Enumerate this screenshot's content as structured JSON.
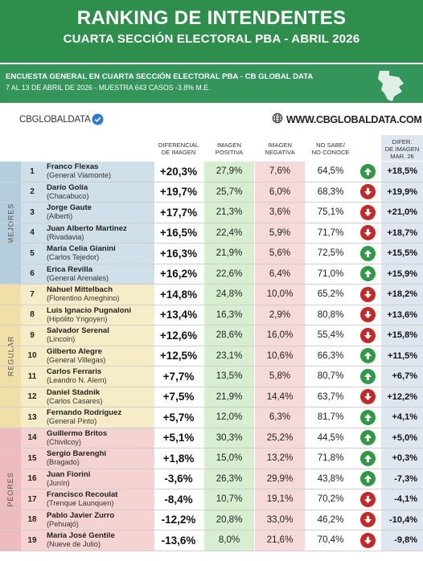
{
  "header": {
    "title": "RANKING DE INTENDENTES",
    "subtitle": "CUARTA SECCIÓN ELECTORAL PBA - ABRIL 2026"
  },
  "info": {
    "line1": "ENCUESTA GENERAL EN CUARTA SECCIÓN ELECTORAL PBA - CB GLOBAL DATA",
    "line2": "7 AL 13 DE ABRIL  DE 2026 - MUESTRA 643  CASOS -3.8% M.E."
  },
  "brand": {
    "left": "CBGLOBALDATA",
    "right": "WWW.CBGLOBALDATA.COM"
  },
  "columns": {
    "diff": [
      "DIFERENCIAL",
      "DE IMAGEN"
    ],
    "pos": [
      "IMAGEN",
      "POSITIVA"
    ],
    "neg": [
      "IMAGEN",
      "NEGATIVA"
    ],
    "ns": [
      "NO SABE/",
      "NO CONOCE"
    ],
    "var": [
      "DIFER.",
      "DE IMAGEN",
      "MAR. 26"
    ]
  },
  "groups": [
    {
      "label": "MEJORES",
      "from": 0,
      "to": 5,
      "color": "#cfe0ea",
      "band": "#b5cede"
    },
    {
      "label": "REGULAR",
      "from": 6,
      "to": 12,
      "color": "#f7ecc8",
      "band": "#f0dfa6"
    },
    {
      "label": "PEORES",
      "from": 13,
      "to": 18,
      "color": "#f5d3d3",
      "band": "#eebcbc"
    }
  ],
  "colors": {
    "up": "#2f9a44",
    "down": "#c62828"
  },
  "rows": [
    {
      "rank": "1",
      "name": "Franco Flexas",
      "town": "(General Viamonte)",
      "diff": "+20,3%",
      "pos": "27,9%",
      "neg": "7,6%",
      "ns": "64,5%",
      "trend": "up",
      "var": "+18,5%"
    },
    {
      "rank": "2",
      "name": "Darío Golía",
      "town": "(Chacabuco)",
      "diff": "+19,7%",
      "pos": "25,7%",
      "neg": "6,0%",
      "ns": "68,3%",
      "trend": "down",
      "var": "+19,9%"
    },
    {
      "rank": "3",
      "name": "Jorge Gaute",
      "town": "(Alberti)",
      "diff": "+17,7%",
      "pos": "21,3%",
      "neg": "3,6%",
      "ns": "75,1%",
      "trend": "down",
      "var": "+21,0%"
    },
    {
      "rank": "4",
      "name": "Juan Alberto Martinez",
      "town": "(Rivadavia)",
      "diff": "+16,5%",
      "pos": "22,4%",
      "neg": "5,9%",
      "ns": "71,7%",
      "trend": "down",
      "var": "+18,7%"
    },
    {
      "rank": "5",
      "name": "María Celia Gianini",
      "town": "(Carlos Tejedor)",
      "diff": "+16,3%",
      "pos": "21,9%",
      "neg": "5,6%",
      "ns": "72,5%",
      "trend": "up",
      "var": "+15,5%"
    },
    {
      "rank": "6",
      "name": "Erica Revilla",
      "town": "(General Arenales)",
      "diff": "+16,2%",
      "pos": "22,6%",
      "neg": "6,4%",
      "ns": "71,0%",
      "trend": "up",
      "var": "+15,9%"
    },
    {
      "rank": "7",
      "name": "Nahuel Mittelbach",
      "town": "(Florentino Ameghino)",
      "diff": "+14,8%",
      "pos": "24,8%",
      "neg": "10,0%",
      "ns": "65,2%",
      "trend": "down",
      "var": "+18,2%"
    },
    {
      "rank": "8",
      "name": "Luis Ignacio Pugnaloni",
      "town": "(Hipólito Yrigoyen)",
      "diff": "+13,4%",
      "pos": "16,3%",
      "neg": "2,9%",
      "ns": "80,8%",
      "trend": "down",
      "var": "+13,6%"
    },
    {
      "rank": "9",
      "name": "Salvador Serenal",
      "town": "(Lincoln)",
      "diff": "+12,6%",
      "pos": "28,6%",
      "neg": "16,0%",
      "ns": "55,4%",
      "trend": "down",
      "var": "+15,8%"
    },
    {
      "rank": "10",
      "name": "Gilberto Alegre",
      "town": "(General Villegas)",
      "diff": "+12,5%",
      "pos": "23,1%",
      "neg": "10,6%",
      "ns": "66,3%",
      "trend": "up",
      "var": "+11,5%"
    },
    {
      "rank": "11",
      "name": "Carlos Ferraris",
      "town": "(Leandro N. Alem)",
      "diff": "+7,7%",
      "pos": "13,5%",
      "neg": "5,8%",
      "ns": "80,7%",
      "trend": "up",
      "var": "+6,7%"
    },
    {
      "rank": "12",
      "name": "Daniel Stadnik",
      "town": "(Carlos Casares)",
      "diff": "+7,5%",
      "pos": "21,9%",
      "neg": "14,4%",
      "ns": "63,7%",
      "trend": "down",
      "var": "+12,2%"
    },
    {
      "rank": "13",
      "name": "Fernando Rodríguez",
      "town": "(General Pinto)",
      "diff": "+5,7%",
      "pos": "12,0%",
      "neg": "6,3%",
      "ns": "81,7%",
      "trend": "up",
      "var": "+4,1%"
    },
    {
      "rank": "14",
      "name": "Guillermo Britos",
      "town": "(Chivilcoy)",
      "diff": "+5,1%",
      "pos": "30,3%",
      "neg": "25,2%",
      "ns": "44,5%",
      "trend": "up",
      "var": "+5,0%"
    },
    {
      "rank": "15",
      "name": "Sergio Barenghi",
      "town": "(Bragado)",
      "diff": "+1,8%",
      "pos": "15,0%",
      "neg": "13,2%",
      "ns": "71,8%",
      "trend": "up",
      "var": "+0,3%"
    },
    {
      "rank": "16",
      "name": "Juan Fiorini",
      "town": "(Junín)",
      "diff": "-3,6%",
      "pos": "26,3%",
      "neg": "29,9%",
      "ns": "43,8%",
      "trend": "up",
      "var": "-7,3%"
    },
    {
      "rank": "17",
      "name": "Francisco Recoulat",
      "town": "(Trenque Launquen)",
      "diff": "-8,4%",
      "pos": "10,7%",
      "neg": "19,1%",
      "ns": "70,2%",
      "trend": "down",
      "var": "-4,1%"
    },
    {
      "rank": "18",
      "name": "Pablo Javier Zurro",
      "town": "(Pehuajó)",
      "diff": "-12,2%",
      "pos": "20,8%",
      "neg": "33,0%",
      "ns": "46,2%",
      "trend": "down",
      "var": "-10,4%"
    },
    {
      "rank": "19",
      "name": "María José Gentile",
      "town": "(Nueve de Julio)",
      "diff": "-13,6%",
      "pos": "8,0%",
      "neg": "21,6%",
      "ns": "70,4%",
      "trend": "down",
      "var": "-9,8%"
    }
  ]
}
